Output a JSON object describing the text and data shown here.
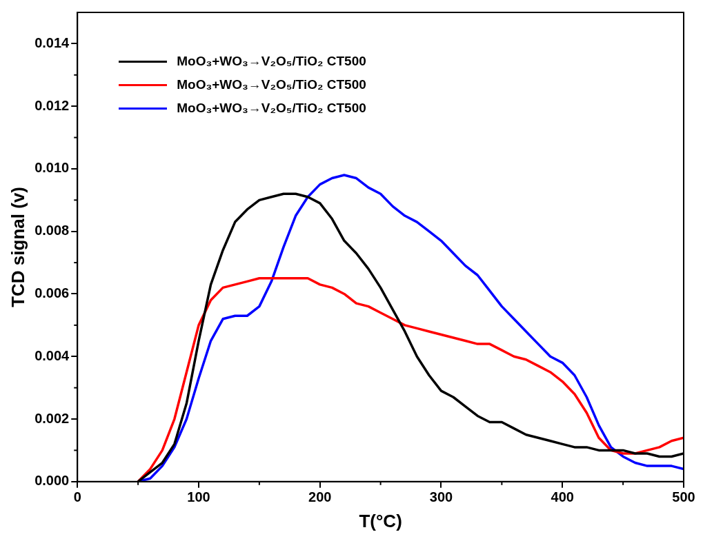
{
  "chart_data": {
    "type": "line",
    "xlabel": "T(°C)",
    "ylabel": "TCD signal (v)",
    "legend": "top left",
    "grid": false,
    "xlim": [
      0,
      500
    ],
    "xticks": [
      0,
      100,
      200,
      300,
      400,
      500
    ],
    "ylim": [
      0,
      0.015
    ],
    "yticks": [
      {
        "value": 0,
        "label": "0.000"
      },
      {
        "value": 0.002,
        "label": "0.002"
      },
      {
        "value": 0.004,
        "label": "0.004"
      },
      {
        "value": 0.006,
        "label": "0.006"
      },
      {
        "value": 0.008,
        "label": "0.008"
      },
      {
        "value": 0.01,
        "label": "0.010"
      },
      {
        "value": 0.012,
        "label": "0.012"
      },
      {
        "value": 0.014,
        "label": "0.014"
      }
    ],
    "x": [
      50,
      60,
      70,
      80,
      90,
      100,
      110,
      120,
      130,
      140,
      150,
      160,
      170,
      180,
      190,
      200,
      210,
      220,
      230,
      240,
      250,
      260,
      270,
      280,
      290,
      300,
      310,
      320,
      330,
      340,
      350,
      360,
      370,
      380,
      390,
      400,
      410,
      420,
      430,
      440,
      450,
      460,
      470,
      480,
      490,
      500
    ],
    "series": [
      {
        "name": "MoO₃+WO₃→V₂O₅/TiO₂ CT500",
        "color": "#000000",
        "values": [
          0,
          0.0003,
          0.0006,
          0.0012,
          0.0025,
          0.0045,
          0.0063,
          0.0074,
          0.0083,
          0.0087,
          0.009,
          0.0091,
          0.0092,
          0.0092,
          0.0091,
          0.0089,
          0.0084,
          0.0077,
          0.0073,
          0.0068,
          0.0062,
          0.0055,
          0.0048,
          0.004,
          0.0034,
          0.0029,
          0.0027,
          0.0024,
          0.0021,
          0.0019,
          0.0019,
          0.0017,
          0.0015,
          0.0014,
          0.0013,
          0.0012,
          0.0011,
          0.0011,
          0.001,
          0.001,
          0.001,
          0.0009,
          0.0009,
          0.0008,
          0.0008,
          0.0009
        ]
      },
      {
        "name": "MoO₃+WO₃→V₂O₅/TiO₂ CT500",
        "color": "#ff0000",
        "values": [
          0,
          0.0004,
          0.001,
          0.002,
          0.0035,
          0.005,
          0.0058,
          0.0062,
          0.0063,
          0.0064,
          0.0065,
          0.0065,
          0.0065,
          0.0065,
          0.0065,
          0.0063,
          0.0062,
          0.006,
          0.0057,
          0.0056,
          0.0054,
          0.0052,
          0.005,
          0.0049,
          0.0048,
          0.0047,
          0.0046,
          0.0045,
          0.0044,
          0.0044,
          0.0042,
          0.004,
          0.0039,
          0.0037,
          0.0035,
          0.0032,
          0.0028,
          0.0022,
          0.0014,
          0.001,
          0.0009,
          0.0009,
          0.001,
          0.0011,
          0.0013,
          0.0014
        ]
      },
      {
        "name": "MoO₃+WO₃→V₂O₅/TiO₂ CT500",
        "color": "#0000ff",
        "values": [
          0,
          0.0001,
          0.0005,
          0.0011,
          0.002,
          0.0033,
          0.0045,
          0.0052,
          0.0053,
          0.0053,
          0.0056,
          0.0064,
          0.0075,
          0.0085,
          0.0091,
          0.0095,
          0.0097,
          0.0098,
          0.0097,
          0.0094,
          0.0092,
          0.0088,
          0.0085,
          0.0083,
          0.008,
          0.0077,
          0.0073,
          0.0069,
          0.0066,
          0.0061,
          0.0056,
          0.0052,
          0.0048,
          0.0044,
          0.004,
          0.0038,
          0.0034,
          0.0027,
          0.0018,
          0.0011,
          0.0008,
          0.0006,
          0.0005,
          0.0005,
          0.0005,
          0.0004
        ]
      }
    ]
  }
}
